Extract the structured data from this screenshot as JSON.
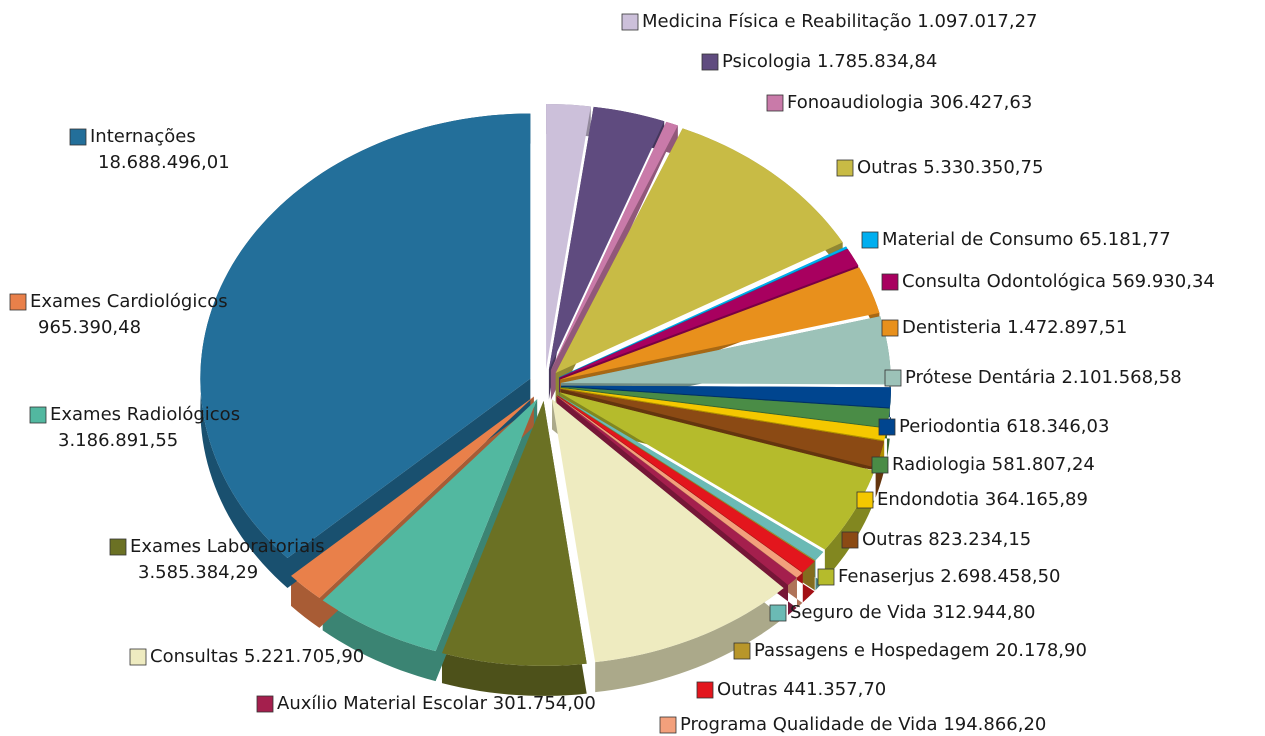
{
  "chart_data": {
    "type": "pie",
    "categories": [
      "Medicina Física e Reabilitação",
      "Psicologia",
      "Fonoaudiologia",
      "Outras",
      "Material de Consumo",
      "Consulta Odontológica",
      "Dentisteria",
      "Prótese Dentária",
      "Periodontia",
      "Radiologia",
      "Endondotia",
      "Outras",
      "Fenaserjus",
      "Seguro de Vida",
      "Passagens e Hospedagem",
      "Outras",
      "Programa Qualidade de Vida",
      "Auxílio Material Escolar",
      "Consultas",
      "Exames Laboratoriais",
      "Exames Radiológicos",
      "Exames Cardiológicos",
      "Internações"
    ],
    "values": [
      1097017.27,
      1785834.84,
      306427.63,
      5330350.75,
      65181.77,
      569930.34,
      1472897.51,
      2101568.58,
      618346.03,
      581807.24,
      364165.89,
      823234.15,
      2698458.5,
      312944.8,
      20178.9,
      441357.7,
      194866.2,
      301754.0,
      5221705.9,
      3585384.29,
      3186891.55,
      965390.48,
      18688496.01
    ],
    "value_labels": [
      "1.097.017,27",
      "1.785.834,84",
      "306.427,63",
      "5.330.350,75",
      "65.181,77",
      "569.930,34",
      "1.472.897,51",
      "2.101.568,58",
      "618.346,03",
      "581.807,24",
      "364.165,89",
      "823.234,15",
      "2.698.458,50",
      "312.944,80",
      "20.178,90",
      "441.357,70",
      "194.866,20",
      "301.754,00",
      "5.221.705,90",
      "3.585.384,29",
      "3.186.891,55",
      "965.390,48",
      "18.688.496,01"
    ],
    "colors": [
      "#ccc0da",
      "#5f4b7f",
      "#c97aa9",
      "#c8bb45",
      "#00aeef",
      "#a8005f",
      "#e8901c",
      "#9cc2b8",
      "#00458f",
      "#4a8c46",
      "#f5c800",
      "#8b4a14",
      "#b5bb2c",
      "#6bbab5",
      "#b8962a",
      "#e3161d",
      "#f3a07c",
      "#a41f4d",
      "#eeebc0",
      "#6b7124",
      "#52b8a0",
      "#e9804a",
      "#236f9a"
    ]
  }
}
